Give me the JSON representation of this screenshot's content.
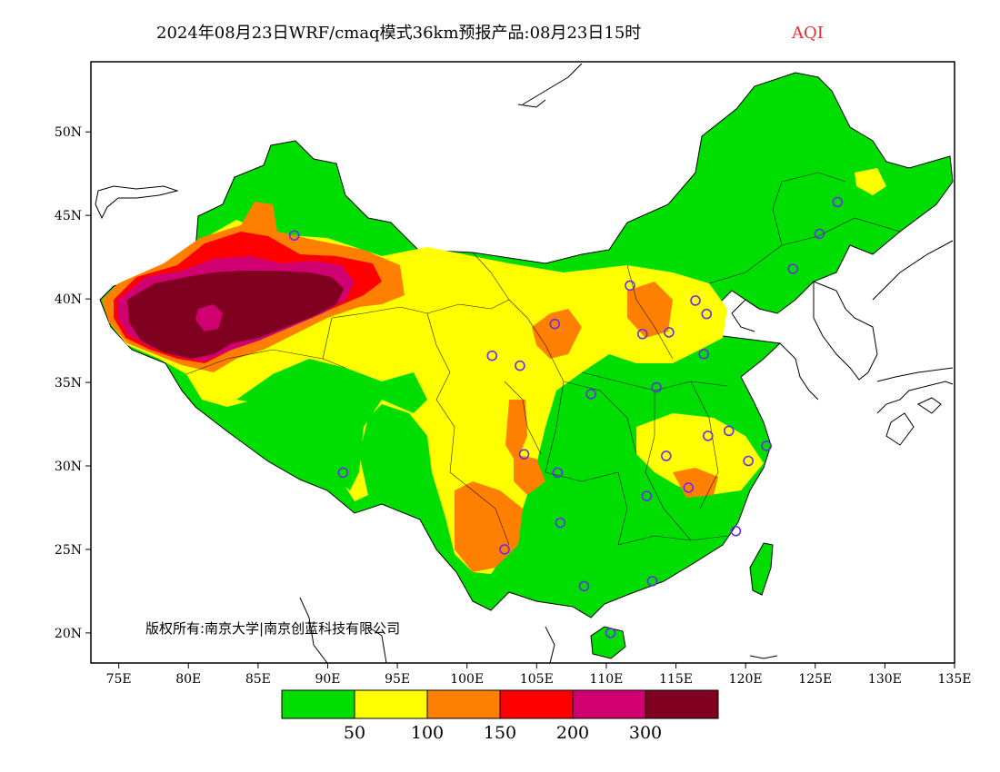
{
  "title": {
    "main": "2024年08月23日WRF/cmaq模式36km预报产品:08月23日15时",
    "variable": "AQI"
  },
  "copyright": "版权所有:南京大学|南京创蓝科技有限公司",
  "axes": {
    "lon_ticks": [
      "75E",
      "80E",
      "85E",
      "90E",
      "95E",
      "100E",
      "105E",
      "110E",
      "115E",
      "120E",
      "125E",
      "130E",
      "135E"
    ],
    "lat_ticks": [
      "50N",
      "45N",
      "40N",
      "35N",
      "30N",
      "25N",
      "20N"
    ]
  },
  "legend": {
    "colors": [
      "#00dd00",
      "#ffff00",
      "#ff8000",
      "#ff0000",
      "#d00070",
      "#800020"
    ],
    "labels": [
      "50",
      "100",
      "150",
      "200",
      "300"
    ]
  },
  "stations": [
    {
      "lon": 87.6,
      "lat": 43.8
    },
    {
      "lon": 91.1,
      "lat": 29.6
    },
    {
      "lon": 101.8,
      "lat": 36.6
    },
    {
      "lon": 103.8,
      "lat": 36.0
    },
    {
      "lon": 106.3,
      "lat": 38.5
    },
    {
      "lon": 111.7,
      "lat": 40.8
    },
    {
      "lon": 112.6,
      "lat": 37.9
    },
    {
      "lon": 114.5,
      "lat": 38.0
    },
    {
      "lon": 116.4,
      "lat": 39.9
    },
    {
      "lon": 117.2,
      "lat": 39.1
    },
    {
      "lon": 117.0,
      "lat": 36.7
    },
    {
      "lon": 123.4,
      "lat": 41.8
    },
    {
      "lon": 125.3,
      "lat": 43.9
    },
    {
      "lon": 126.6,
      "lat": 45.8
    },
    {
      "lon": 108.9,
      "lat": 34.3
    },
    {
      "lon": 113.6,
      "lat": 34.7
    },
    {
      "lon": 117.3,
      "lat": 31.8
    },
    {
      "lon": 118.8,
      "lat": 32.1
    },
    {
      "lon": 121.5,
      "lat": 31.2
    },
    {
      "lon": 120.2,
      "lat": 30.3
    },
    {
      "lon": 114.3,
      "lat": 30.6
    },
    {
      "lon": 104.1,
      "lat": 30.7
    },
    {
      "lon": 106.5,
      "lat": 29.6
    },
    {
      "lon": 112.9,
      "lat": 28.2
    },
    {
      "lon": 115.9,
      "lat": 28.7
    },
    {
      "lon": 106.7,
      "lat": 26.6
    },
    {
      "lon": 102.7,
      "lat": 25.0
    },
    {
      "lon": 119.3,
      "lat": 26.1
    },
    {
      "lon": 113.3,
      "lat": 23.1
    },
    {
      "lon": 108.4,
      "lat": 22.8
    },
    {
      "lon": 110.3,
      "lat": 20.0
    }
  ]
}
